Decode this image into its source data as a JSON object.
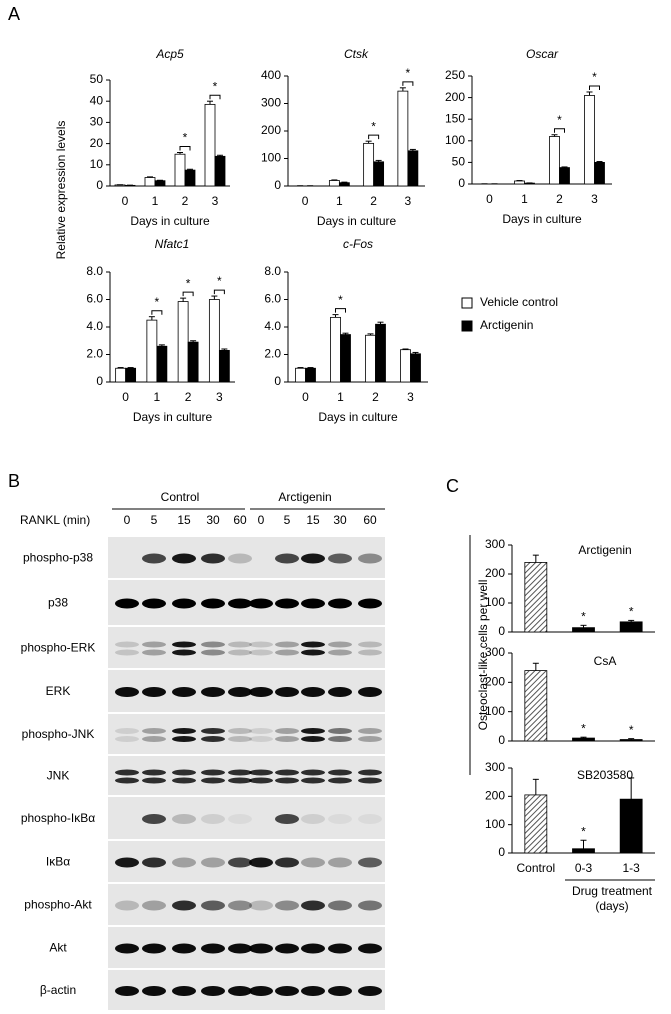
{
  "panels": {
    "a": "A",
    "b": "B",
    "c": "C"
  },
  "panel_a": {
    "ylabel": "Relative expression levels"
  },
  "panel_c": {
    "ylabel": "Osteoclast-like cells  per well",
    "group_label": [
      "Drug treatment",
      "(days)"
    ]
  },
  "blot": {
    "conditions": [
      "Control",
      "Arctigenin"
    ],
    "treatment_label": "RANKL (min)",
    "times": [
      "0",
      "5",
      "15",
      "30",
      "60",
      "0",
      "5",
      "15",
      "30",
      "60"
    ],
    "rows": [
      "phospho-p38",
      "p38",
      "phospho-ERK",
      "ERK",
      "phospho-JNK",
      "JNK",
      "phospho-IκBα",
      "IκBα",
      "phospho-Akt",
      "Akt",
      "β-actin"
    ]
  },
  "chart_data": [
    {
      "type": "bar",
      "title": "Acp5",
      "title_style": "italic",
      "xlabel": "Days in culture",
      "categories": [
        "0",
        "1",
        "2",
        "3"
      ],
      "series": [
        {
          "name": "Vehicle control",
          "color": "#ffffff",
          "values": [
            0.5,
            4,
            15,
            38.5
          ],
          "errors": [
            0.1,
            0.3,
            0.8,
            1.5
          ]
        },
        {
          "name": "Arctigenin",
          "color": "#000000",
          "values": [
            0.3,
            2.5,
            7.5,
            14
          ],
          "errors": [
            0.1,
            0.2,
            0.4,
            0.5
          ]
        }
      ],
      "significance": [
        null,
        null,
        "*",
        "*"
      ],
      "ylim": [
        0,
        50
      ],
      "yticks": [
        0,
        10,
        20,
        30,
        40,
        50
      ]
    },
    {
      "type": "bar",
      "title": "Ctsk",
      "title_style": "italic",
      "xlabel": "Days in culture",
      "categories": [
        "0",
        "1",
        "2",
        "3"
      ],
      "series": [
        {
          "color": "#ffffff",
          "values": [
            0,
            20,
            155,
            345
          ],
          "errors": [
            1,
            2,
            8,
            12
          ]
        },
        {
          "color": "#000000",
          "values": [
            0,
            12,
            88,
            128
          ],
          "errors": [
            1,
            2,
            5,
            5
          ]
        }
      ],
      "significance": [
        null,
        null,
        "*",
        "*"
      ],
      "ylim": [
        0,
        400
      ],
      "yticks": [
        0,
        100,
        200,
        300,
        400
      ]
    },
    {
      "type": "bar",
      "title": "Oscar",
      "title_style": "italic",
      "xlabel": "Days in culture",
      "categories": [
        "0",
        "1",
        "2",
        "3"
      ],
      "series": [
        {
          "color": "#ffffff",
          "values": [
            0,
            7,
            110,
            205
          ],
          "errors": [
            0.5,
            1,
            4,
            8
          ]
        },
        {
          "color": "#000000",
          "values": [
            0,
            2,
            38,
            50
          ],
          "errors": [
            0.5,
            0.5,
            1.5,
            2
          ]
        }
      ],
      "significance": [
        null,
        null,
        "*",
        "*"
      ],
      "ylim": [
        0,
        250
      ],
      "yticks": [
        0,
        50,
        100,
        150,
        200,
        250
      ]
    },
    {
      "type": "bar",
      "title": "Nfatc1",
      "title_style": "italic",
      "xlabel": "Days in culture",
      "categories": [
        "0",
        "1",
        "2",
        "3"
      ],
      "series": [
        {
          "color": "#ffffff",
          "values": [
            1,
            4.5,
            5.85,
            6.0
          ],
          "errors": [
            0.05,
            0.25,
            0.25,
            0.25
          ]
        },
        {
          "color": "#000000",
          "values": [
            1,
            2.6,
            2.9,
            2.3
          ],
          "errors": [
            0.05,
            0.1,
            0.1,
            0.1
          ]
        }
      ],
      "significance": [
        null,
        "*",
        "*",
        "*"
      ],
      "ylim": [
        0,
        8
      ],
      "yticks": [
        0,
        {
          "value": 2,
          "label": "2.0"
        },
        {
          "value": 4,
          "label": "4.0"
        },
        {
          "value": 6,
          "label": "6.0"
        },
        {
          "value": 8,
          "label": "8.0"
        }
      ]
    },
    {
      "type": "bar",
      "title": "c-Fos",
      "title_style": "italic",
      "xlabel": "Days in culture",
      "categories": [
        "0",
        "1",
        "2",
        "3"
      ],
      "series": [
        {
          "color": "#ffffff",
          "values": [
            1,
            4.7,
            3.4,
            2.35
          ],
          "errors": [
            0.05,
            0.2,
            0.1,
            0.05
          ]
        },
        {
          "color": "#000000",
          "values": [
            1,
            3.45,
            4.2,
            2.05
          ],
          "errors": [
            0.05,
            0.1,
            0.15,
            0.1
          ]
        }
      ],
      "significance": [
        null,
        "*",
        null,
        null
      ],
      "ylim": [
        0,
        8
      ],
      "yticks": [
        0,
        {
          "value": 2,
          "label": "2.0"
        },
        {
          "value": 4,
          "label": "4.0"
        },
        {
          "value": 6,
          "label": "6.0"
        },
        {
          "value": 8,
          "label": "8.0"
        }
      ]
    },
    {
      "type": "bar",
      "title": "Arctigenin",
      "series": [
        {
          "colors": [
            "#999999",
            "#000000",
            "#000000"
          ],
          "hatched": [
            true,
            false,
            false
          ],
          "values": [
            240,
            15,
            35
          ],
          "errors": [
            25,
            8,
            5
          ]
        }
      ],
      "significance": [
        null,
        "*",
        "*"
      ],
      "ylim": [
        0,
        300
      ],
      "yticks": [
        0,
        100,
        200,
        300
      ]
    },
    {
      "type": "bar",
      "title": "CsA",
      "series": [
        {
          "colors": [
            "#999999",
            "#000000",
            "#000000"
          ],
          "hatched": [
            true,
            false,
            false
          ],
          "values": [
            240,
            10,
            5
          ],
          "errors": [
            25,
            3,
            3
          ]
        }
      ],
      "significance": [
        null,
        "*",
        "*"
      ],
      "ylim": [
        0,
        300
      ],
      "yticks": [
        0,
        100,
        200,
        300
      ]
    },
    {
      "type": "bar",
      "title": "SB203580",
      "categories": [
        "Control",
        "0-3",
        "1-3"
      ],
      "series": [
        {
          "colors": [
            "#999999",
            "#000000",
            "#000000"
          ],
          "hatched": [
            true,
            false,
            false
          ],
          "values": [
            205,
            15,
            190
          ],
          "errors": [
            55,
            30,
            75
          ]
        }
      ],
      "significance": [
        null,
        "*",
        null
      ],
      "ylim": [
        0,
        300
      ],
      "yticks": [
        0,
        100,
        200,
        300
      ]
    }
  ]
}
